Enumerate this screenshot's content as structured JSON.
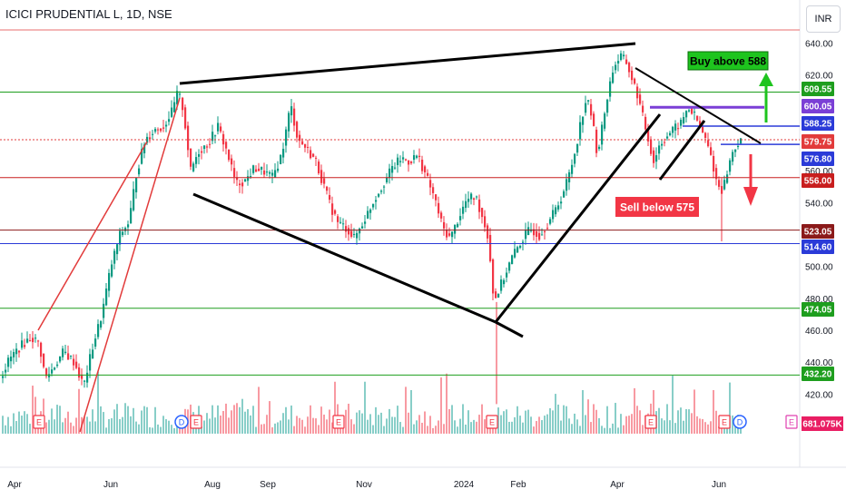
{
  "header": {
    "title": "ICICI PRUDENTIAL L, 1D, NSE",
    "currency": "INR"
  },
  "chart_data": {
    "type": "candlestick",
    "y_ticks": [
      420,
      440,
      460,
      480,
      500,
      520,
      540,
      560,
      580,
      600,
      620,
      640
    ],
    "x_ticks": [
      "Apr",
      "Jun",
      "Aug",
      "Sep",
      "Nov",
      "2024",
      "Feb",
      "Apr",
      "Jun"
    ],
    "ylim": [
      414,
      647
    ],
    "grid": false,
    "price_levels": [
      {
        "label": "609.55",
        "value": 609.55,
        "color": "#1e9e1e",
        "style": "solid"
      },
      {
        "label": "600.05",
        "value": 600.05,
        "color": "#7b3fd6",
        "style": "solid"
      },
      {
        "label": "588.25",
        "value": 588.25,
        "color": "#2b3bd8",
        "style": "solid"
      },
      {
        "label": "579.75",
        "value": 579.75,
        "color": "#e23b3b",
        "style": "dotted"
      },
      {
        "label": "576.80",
        "value": 576.8,
        "color": "#2b3bd8",
        "style": "solid"
      },
      {
        "label": "556.00",
        "value": 556.0,
        "color": "#c81e1e",
        "style": "solid"
      },
      {
        "label": "523.05",
        "value": 523.05,
        "color": "#8b1a1a",
        "style": "solid"
      },
      {
        "label": "514.60",
        "value": 514.6,
        "color": "#2b3bd8",
        "style": "solid"
      },
      {
        "label": "474.05",
        "value": 474.05,
        "color": "#1e9e1e",
        "style": "solid"
      },
      {
        "label": "432.20",
        "value": 432.2,
        "color": "#1e9e1e",
        "style": "solid"
      }
    ],
    "annotations": {
      "buy": "Buy above 588",
      "sell": "Sell below 575"
    },
    "volume_label": "681.075K",
    "event_markers": [
      "E",
      "D",
      "E",
      "E",
      "E",
      "E",
      "E",
      "D",
      "E"
    ],
    "colors": {
      "up": "#26a69a",
      "up_candle": "#089981",
      "down": "#f23645",
      "buy_bg": "#1ec41e",
      "sell_bg": "#f23645"
    }
  }
}
